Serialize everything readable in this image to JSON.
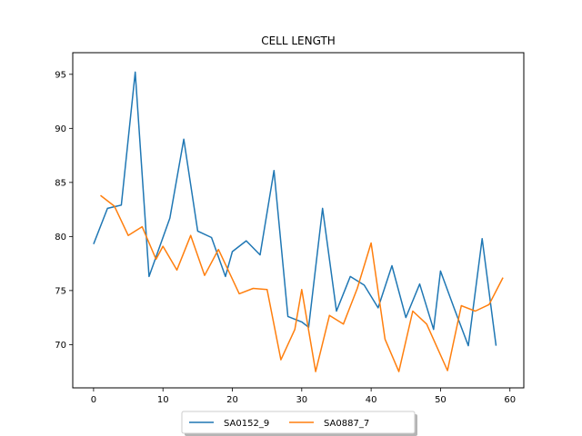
{
  "chart_data": {
    "type": "line",
    "title": "CELL LENGTH",
    "xlabel": "",
    "ylabel": "",
    "xlim": [
      -3,
      62
    ],
    "ylim": [
      66,
      97
    ],
    "xticks": [
      0,
      10,
      20,
      30,
      40,
      50,
      60
    ],
    "yticks": [
      70,
      75,
      80,
      85,
      90,
      95
    ],
    "grid": false,
    "legend": {
      "placement": "bottom-center",
      "columns": 2
    },
    "series": [
      {
        "name": "SA0152_9",
        "color": "#1f77b4",
        "x": [
          0,
          2,
          4,
          6,
          8,
          11,
          13,
          15,
          17,
          19,
          20,
          22,
          24,
          26,
          28,
          30,
          31,
          33,
          35,
          37,
          39,
          41,
          43,
          45,
          47,
          49,
          50,
          52,
          54,
          56,
          58
        ],
        "y": [
          79.3,
          82.6,
          82.9,
          95.2,
          76.3,
          81.7,
          89.0,
          80.5,
          79.9,
          76.3,
          78.6,
          79.6,
          78.3,
          86.1,
          72.6,
          72.1,
          71.6,
          82.6,
          73.1,
          76.3,
          75.5,
          73.4,
          77.3,
          72.5,
          75.6,
          71.4,
          76.8,
          73.3,
          69.9,
          79.8,
          69.9
        ]
      },
      {
        "name": "SA0887_7",
        "color": "#ff7f0e",
        "x": [
          1,
          3,
          5,
          7,
          9,
          10,
          12,
          14,
          16,
          18,
          21,
          23,
          25,
          27,
          29,
          30,
          32,
          34,
          36,
          38,
          40,
          42,
          44,
          46,
          48,
          51,
          53,
          55,
          57,
          59
        ],
        "y": [
          83.8,
          82.8,
          80.1,
          80.9,
          77.9,
          79.1,
          76.9,
          80.1,
          76.4,
          78.8,
          74.7,
          75.2,
          75.1,
          68.6,
          71.4,
          75.1,
          67.5,
          72.7,
          71.9,
          75.2,
          79.4,
          70.5,
          67.5,
          73.1,
          71.9,
          67.6,
          73.6,
          73.1,
          73.7,
          76.2
        ]
      }
    ]
  }
}
